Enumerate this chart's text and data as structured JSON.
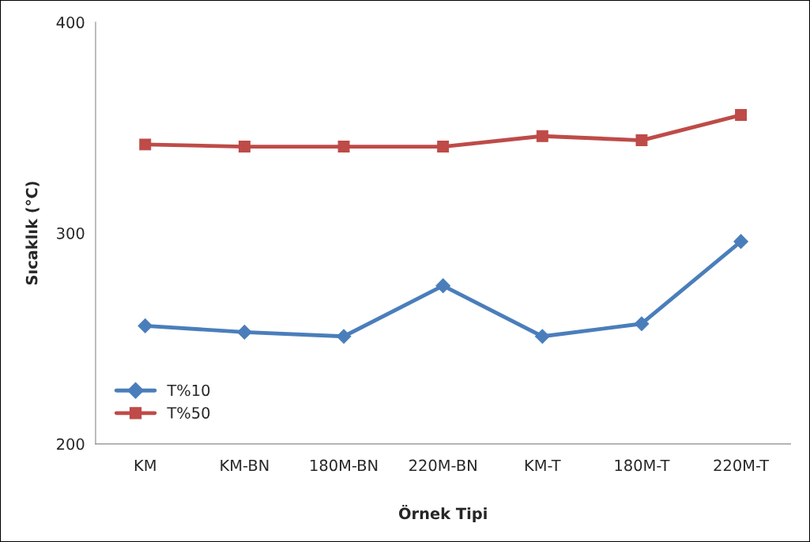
{
  "chart_data": {
    "type": "line",
    "xlabel": "Örnek Tipi",
    "ylabel": "Sıcaklık (°C)",
    "categories": [
      "KM",
      "KM-BN",
      "180M-BN",
      "220M-BN",
      "KM-T",
      "180M-T",
      "220M-T"
    ],
    "series": [
      {
        "name": "T%10",
        "color": "#4a7ebb",
        "marker": "diamond",
        "values": [
          256,
          253,
          251,
          275,
          251,
          257,
          296
        ]
      },
      {
        "name": "T%50",
        "color": "#be4b48",
        "marker": "square",
        "values": [
          342,
          341,
          341,
          341,
          346,
          344,
          356
        ]
      }
    ],
    "ylim": [
      200,
      400
    ],
    "yticks": [
      200,
      300,
      400
    ],
    "grid": false,
    "legend": "bottom left",
    "line_style": "solid"
  }
}
